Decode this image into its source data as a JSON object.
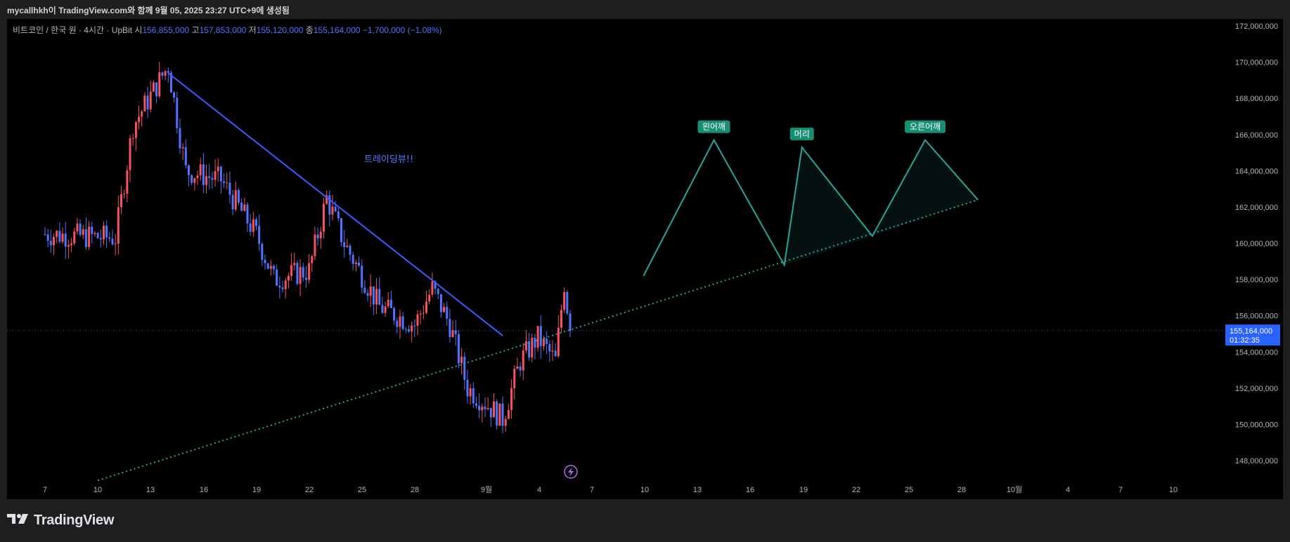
{
  "top_bar": {
    "attribution": "mycallhkh이 TradingView.com와 함께 9월 05, 2025 23:27 UTC+9에 생성됨"
  },
  "legend": {
    "symbol": "비트코인 / 한국 원 · 4시간 · UpBit",
    "open_label": "시",
    "open": "156,855,000",
    "high_label": "고",
    "high": "157,853,000",
    "low_label": "저",
    "low": "155,120,000",
    "close_label": "종",
    "close": "155,164,000",
    "change": "−1,700,000 (−1.08%)"
  },
  "annotation_text": "트레이딩뷰!!",
  "pattern_labels": [
    "왼어깨",
    "머리",
    "오른어깨"
  ],
  "price_badge": {
    "price": "155,164,000",
    "countdown": "01:32:35"
  },
  "brand": "TradingView",
  "colors": {
    "background": "#000000",
    "up": "#f7525f",
    "down": "#4f74ff",
    "trendline": "#3d5afe",
    "support": "#26a69a",
    "pattern": "#26a69a",
    "badge": "#2962ff",
    "text": "#b2b5be"
  },
  "chart_data": {
    "type": "candlestick",
    "interval": "4H",
    "ylim": [
      147000000,
      172500000
    ],
    "y_ticks": [
      148000000,
      150000000,
      152000000,
      154000000,
      156000000,
      158000000,
      160000000,
      162000000,
      164000000,
      166000000,
      168000000,
      170000000,
      172000000
    ],
    "y_tick_labels": [
      "148,000,000",
      "150,000,000",
      "152,000,000",
      "154,000,000",
      "156,000,000",
      "158,000,000",
      "160,000,000",
      "162,000,000",
      "164,000,000",
      "166,000,000",
      "168,000,000",
      "170,000,000",
      "172,000,000"
    ],
    "x_tick_labels": [
      "7",
      "10",
      "13",
      "16",
      "19",
      "22",
      "25",
      "28",
      "9월",
      "4",
      "7",
      "10",
      "13",
      "16",
      "19",
      "22",
      "25",
      "28",
      "10월",
      "4",
      "7",
      "10"
    ],
    "last_close": 155164000,
    "key_points": [
      {
        "date": "Aug 7",
        "price": 160500000
      },
      {
        "date": "Aug 11",
        "price": 160300000
      },
      {
        "date": "Aug 12",
        "price": 166500000
      },
      {
        "date": "Aug 14",
        "price": 169800000
      },
      {
        "date": "Aug 15",
        "price": 164000000
      },
      {
        "date": "Aug 17",
        "price": 163500000
      },
      {
        "date": "Aug 19",
        "price": 160500000
      },
      {
        "date": "Aug 20",
        "price": 158000000
      },
      {
        "date": "Aug 22",
        "price": 158500000
      },
      {
        "date": "Aug 23",
        "price": 162500000
      },
      {
        "date": "Aug 24",
        "price": 160000000
      },
      {
        "date": "Aug 26",
        "price": 156500000
      },
      {
        "date": "Aug 28",
        "price": 155500000
      },
      {
        "date": "Aug 29",
        "price": 157500000
      },
      {
        "date": "Aug 30",
        "price": 155500000
      },
      {
        "date": "Aug 31",
        "price": 152000000
      },
      {
        "date": "Sep 1",
        "price": 151200000
      },
      {
        "date": "Sep 2",
        "price": 150300000
      },
      {
        "date": "Sep 3",
        "price": 153500000
      },
      {
        "date": "Sep 4",
        "price": 154800000
      },
      {
        "date": "Sep 5",
        "price": 153500000
      },
      {
        "date": "Sep 5 12:00",
        "price": 157800000
      },
      {
        "date": "Sep 5 20:00",
        "price": 155164000
      }
    ],
    "trendline_resistance": [
      {
        "date": "Aug 14",
        "price": 169400000
      },
      {
        "date": "Sep 2",
        "price": 154900000
      }
    ],
    "trendline_support": [
      {
        "date": "Aug 10",
        "price": 146900000
      },
      {
        "date": "Sep 29",
        "price": 162400000
      }
    ],
    "projected_pattern": [
      {
        "date": "Sep 10",
        "price": 158200000
      },
      {
        "date": "Sep 14",
        "price": 165700000
      },
      {
        "date": "Sep 18",
        "price": 158800000
      },
      {
        "date": "Sep 19",
        "price": 165300000
      },
      {
        "date": "Sep 23",
        "price": 160400000
      },
      {
        "date": "Sep 26",
        "price": 165700000
      },
      {
        "date": "Sep 29",
        "price": 162400000
      }
    ]
  }
}
